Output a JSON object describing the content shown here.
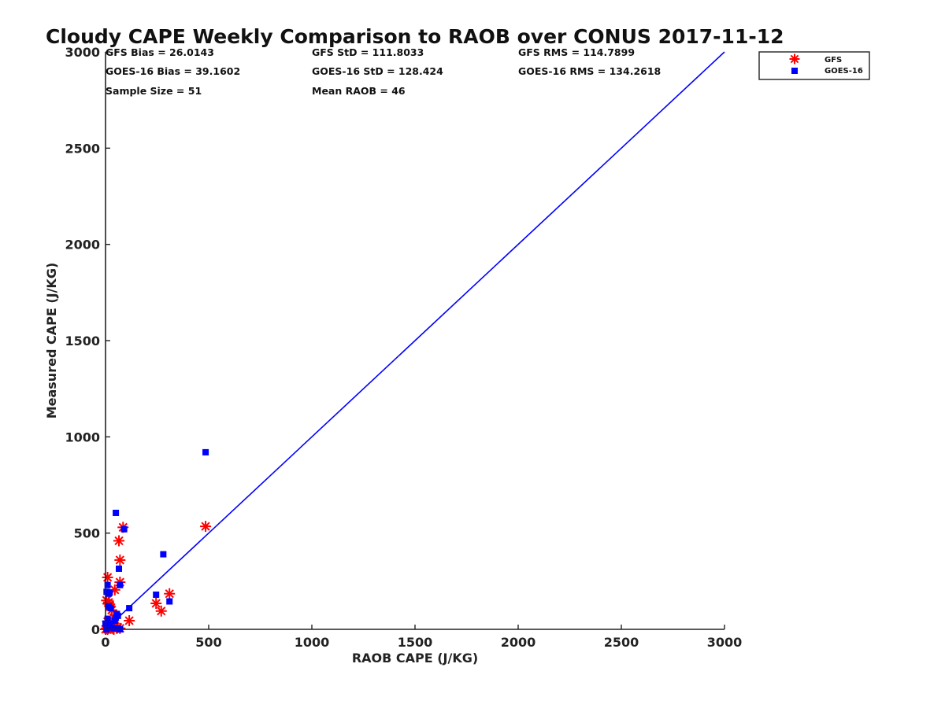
{
  "colors": {
    "gfs": "#ff0000",
    "goes16": "#0000ff",
    "reference_line": "#0000ff",
    "axis": "#222222",
    "background": "#ffffff"
  },
  "stats": {
    "gfs_bias": "GFS Bias = 26.0143",
    "gfs_std": "GFS StD = 111.8033",
    "gfs_rms": "GFS RMS = 114.7899",
    "goes_bias": "GOES-16 Bias = 39.1602",
    "goes_std": "GOES-16 StD = 128.424",
    "goes_rms": "GOES-16 RMS = 134.2618",
    "sample_size": "Sample Size = 51",
    "mean_raob": "Mean RAOB = 46"
  },
  "chart_data": {
    "type": "scatter",
    "title": "Cloudy CAPE Weekly Comparison to RAOB over CONUS 2017-11-12",
    "xlabel": "RAOB CAPE (J/KG)",
    "ylabel": "Measured CAPE (J/KG)",
    "xlim": [
      0,
      3000
    ],
    "ylim": [
      0,
      3000
    ],
    "xticks": [
      0,
      500,
      1000,
      1500,
      2000,
      2500,
      3000
    ],
    "yticks": [
      0,
      500,
      1000,
      1500,
      2000,
      2500,
      3000
    ],
    "xtick_labels": [
      "0",
      "500",
      "1000",
      "1500",
      "2000",
      "2500",
      "3000"
    ],
    "ytick_labels": [
      "0",
      "500",
      "1000",
      "1500",
      "2000",
      "2500",
      "3000"
    ],
    "grid": false,
    "legend_position": "top-right",
    "reference_line": {
      "x": [
        0,
        3000
      ],
      "y": [
        0,
        3000
      ]
    },
    "series": [
      {
        "name": "GFS",
        "marker": "asterisk",
        "color": "#ff0000",
        "points": [
          [
            85,
            530
          ],
          [
            65,
            460
          ],
          [
            70,
            360
          ],
          [
            70,
            245
          ],
          [
            45,
            205
          ],
          [
            10,
            270
          ],
          [
            5,
            150
          ],
          [
            15,
            140
          ],
          [
            20,
            130
          ],
          [
            20,
            120
          ],
          [
            30,
            100
          ],
          [
            40,
            60
          ],
          [
            10,
            40
          ],
          [
            20,
            30
          ],
          [
            30,
            20
          ],
          [
            45,
            15
          ],
          [
            60,
            10
          ],
          [
            5,
            5
          ],
          [
            15,
            5
          ],
          [
            25,
            5
          ],
          [
            35,
            5
          ],
          [
            55,
            5
          ],
          [
            70,
            5
          ],
          [
            0,
            0
          ],
          [
            10,
            0
          ],
          [
            40,
            0
          ],
          [
            115,
            45
          ],
          [
            245,
            135
          ],
          [
            270,
            95
          ],
          [
            310,
            185
          ],
          [
            485,
            535
          ]
        ]
      },
      {
        "name": "GOES-16",
        "marker": "square",
        "color": "#0000ff",
        "points": [
          [
            50,
            605
          ],
          [
            90,
            520
          ],
          [
            65,
            315
          ],
          [
            70,
            230
          ],
          [
            10,
            230
          ],
          [
            5,
            195
          ],
          [
            15,
            185
          ],
          [
            20,
            190
          ],
          [
            15,
            120
          ],
          [
            25,
            110
          ],
          [
            55,
            80
          ],
          [
            60,
            70
          ],
          [
            50,
            60
          ],
          [
            45,
            45
          ],
          [
            10,
            55
          ],
          [
            0,
            30
          ],
          [
            15,
            30
          ],
          [
            20,
            15
          ],
          [
            30,
            10
          ],
          [
            40,
            5
          ],
          [
            60,
            5
          ],
          [
            70,
            0
          ],
          [
            5,
            0
          ],
          [
            115,
            110
          ],
          [
            245,
            180
          ],
          [
            280,
            390
          ],
          [
            310,
            145
          ],
          [
            485,
            920
          ]
        ]
      }
    ]
  }
}
